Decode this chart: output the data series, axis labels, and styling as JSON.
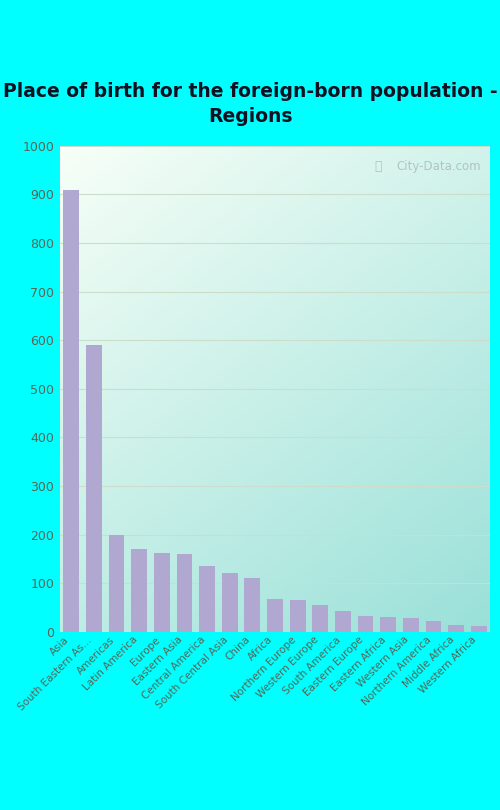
{
  "title": "Place of birth for the foreign-born population -\nRegions",
  "categories": [
    "Asia",
    "South Eastern As...",
    "Americas",
    "Latin America",
    "Europe",
    "Eastern Asia",
    "Central America",
    "South Central Asia",
    "China",
    "Africa",
    "Northern Europe",
    "Western Europe",
    "South America",
    "Eastern Europe",
    "Eastern Africa",
    "Western Asia",
    "Northern America",
    "Middle Africa",
    "Western Africa"
  ],
  "values": [
    910,
    590,
    200,
    170,
    162,
    160,
    135,
    122,
    110,
    68,
    65,
    55,
    42,
    32,
    30,
    28,
    22,
    15,
    12
  ],
  "bar_color": "#b0a8d0",
  "bg_outer": "#00ffff",
  "bg_inner_topleft": "#f8fff8",
  "bg_inner_bottomright": "#a0d8d8",
  "yticks": [
    0,
    100,
    200,
    300,
    400,
    500,
    600,
    700,
    800,
    900,
    1000
  ],
  "ylim": [
    0,
    1000
  ],
  "title_fontsize": 13.5,
  "xtick_fontsize": 7.5,
  "ytick_fontsize": 9,
  "grid_color": "#ccddcc",
  "watermark": "City-Data.com"
}
